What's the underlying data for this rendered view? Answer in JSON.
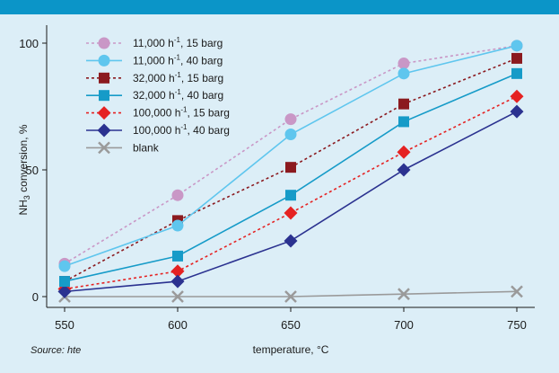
{
  "source": "Source: hte",
  "chart_data": {
    "type": "line",
    "xlabel": "temperature, °C",
    "ylabel": "NH3 conversion, %",
    "x": [
      550,
      600,
      650,
      700,
      750
    ],
    "xticks": [
      "550",
      "600",
      "650",
      "700",
      "750"
    ],
    "yticks": [
      "0",
      "50",
      "100"
    ],
    "xlim": [
      550,
      750
    ],
    "ylim": [
      0,
      100
    ],
    "grid": false,
    "legend_position": "top-left",
    "series": [
      {
        "name_main": "11,000 h",
        "name_sup": "-1",
        "name_rest": ", 15 barg",
        "color": "#c997c6",
        "marker": "circle",
        "dash": true,
        "values": [
          13,
          40,
          70,
          92,
          99
        ]
      },
      {
        "name_main": "11,000 h",
        "name_sup": "-1",
        "name_rest": ", 40 barg",
        "color": "#5fc6ee",
        "marker": "circle",
        "dash": false,
        "values": [
          12,
          28,
          64,
          88,
          99
        ]
      },
      {
        "name_main": "32,000 h",
        "name_sup": "-1",
        "name_rest": ", 15 barg",
        "color": "#8b1a1f",
        "marker": "square",
        "dash": true,
        "values": [
          6,
          30,
          51,
          76,
          94
        ]
      },
      {
        "name_main": "32,000 h",
        "name_sup": "-1",
        "name_rest": ", 40 barg",
        "color": "#169bc8",
        "marker": "square",
        "dash": false,
        "values": [
          6,
          16,
          40,
          69,
          88
        ]
      },
      {
        "name_main": "100,000 h",
        "name_sup": "-1",
        "name_rest": ", 15 barg",
        "color": "#e52222",
        "marker": "diamond",
        "dash": true,
        "values": [
          3,
          10,
          33,
          57,
          79
        ]
      },
      {
        "name_main": "100,000 h",
        "name_sup": "-1",
        "name_rest": ", 40 barg",
        "color": "#2b3290",
        "marker": "diamond",
        "dash": false,
        "values": [
          2,
          6,
          22,
          50,
          73
        ]
      },
      {
        "name_main": "blank",
        "name_sup": "",
        "name_rest": "",
        "color": "#9a9a9a",
        "marker": "x",
        "dash": false,
        "values": [
          0,
          0,
          0,
          1,
          2
        ]
      }
    ]
  }
}
